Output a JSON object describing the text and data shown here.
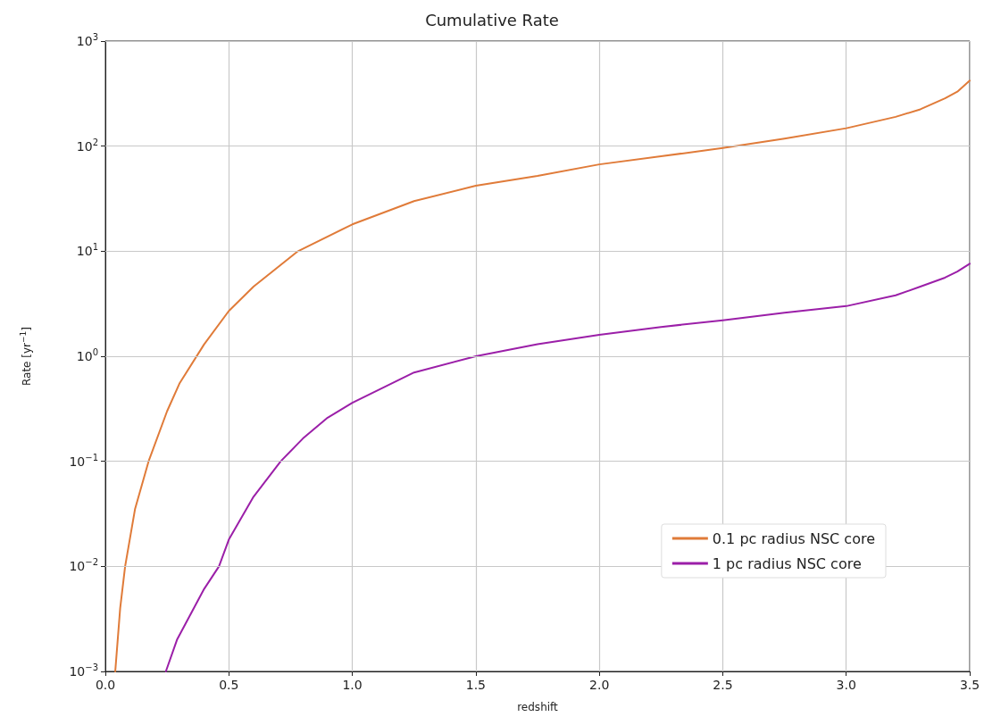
{
  "chart_data": {
    "type": "line",
    "title": "Cumulative Rate",
    "xlabel": "redshift",
    "ylabel": "Rate [yr$^{−1}$]",
    "xlim": [
      0,
      3.5
    ],
    "xticks": [
      {
        "value": 0,
        "label": "0.0"
      },
      0.5,
      {
        "value": 1,
        "label": "1.0"
      },
      1.5,
      {
        "value": 2,
        "label": "2.0"
      },
      2.5,
      {
        "value": 3,
        "label": "3.0"
      },
      3.5
    ],
    "ylim": [
      0.001,
      1000
    ],
    "log": "y",
    "yticks": [
      {
        "value": 0.001,
        "label": "10$^{−3}$"
      },
      {
        "value": 0.01,
        "label": "10$^{−2}$"
      },
      {
        "value": 0.1,
        "label": "10$^{−1}$"
      },
      {
        "value": 1,
        "label": "10$^{0}$"
      },
      {
        "value": 10,
        "label": "10$^{1}$"
      },
      {
        "value": 100,
        "label": "10$^{2}$"
      },
      {
        "value": 1000,
        "label": "10$^{3}$"
      }
    ],
    "grid": true,
    "legend": "bottom right",
    "marker": "none",
    "line_style": "solid",
    "series": [
      {
        "name": "0.1 pc radius NSC core",
        "color": "#e07b39",
        "x": [
          0.04,
          0.06,
          0.08,
          0.12,
          0.175,
          0.25,
          0.3,
          0.4,
          0.5,
          0.6,
          0.78,
          1.0,
          1.25,
          1.5,
          1.75,
          2.0,
          2.25,
          2.5,
          2.75,
          3.0,
          3.2,
          3.3,
          3.4,
          3.45,
          3.5
        ],
        "values": [
          0.001,
          0.004,
          0.01,
          0.035,
          0.1,
          0.3,
          0.55,
          1.3,
          2.7,
          4.6,
          10,
          18,
          30,
          42,
          52,
          67,
          80,
          96,
          118,
          148,
          190,
          224,
          285,
          330,
          420
        ]
      },
      {
        "name": "1 pc radius NSC core",
        "color": "#9b1fa8",
        "x": [
          0.245,
          0.29,
          0.4,
          0.46,
          0.5,
          0.6,
          0.71,
          0.8,
          0.9,
          1.0,
          1.25,
          1.5,
          1.75,
          2.0,
          2.25,
          2.5,
          2.75,
          3.0,
          3.2,
          3.3,
          3.4,
          3.45,
          3.5
        ],
        "values": [
          0.001,
          0.002,
          0.0061,
          0.01,
          0.018,
          0.046,
          0.1,
          0.165,
          0.26,
          0.36,
          0.7,
          1.0,
          1.3,
          1.6,
          1.9,
          2.2,
          2.6,
          3.0,
          3.8,
          4.6,
          5.6,
          6.4,
          7.6
        ]
      }
    ]
  }
}
